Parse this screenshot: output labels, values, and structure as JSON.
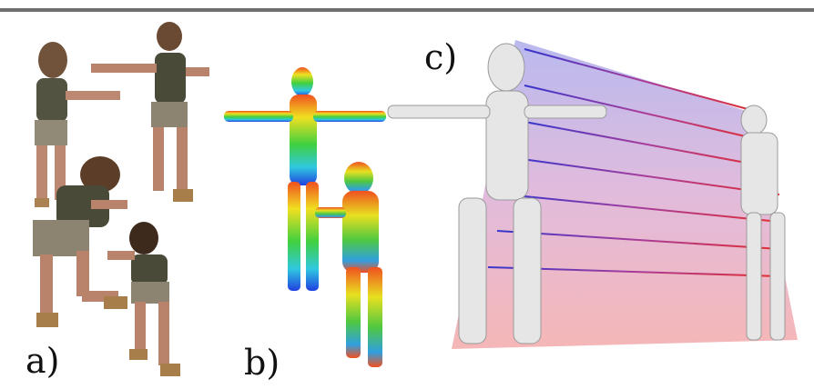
{
  "figure": {
    "labels": {
      "a": "a)",
      "b": "b)",
      "c": "c)"
    },
    "colors": {
      "rule": "#6e6e6e",
      "skin": "#b9826a",
      "tank_top": "#4a4a38",
      "shorts": "#8c8470",
      "boots": "#a77d4a",
      "mesh_white": "#e6e6e6",
      "correspondence_top": "#2020c8",
      "correspondence_mid": "#a02890",
      "correspondence_bottom": "#e01818"
    }
  }
}
